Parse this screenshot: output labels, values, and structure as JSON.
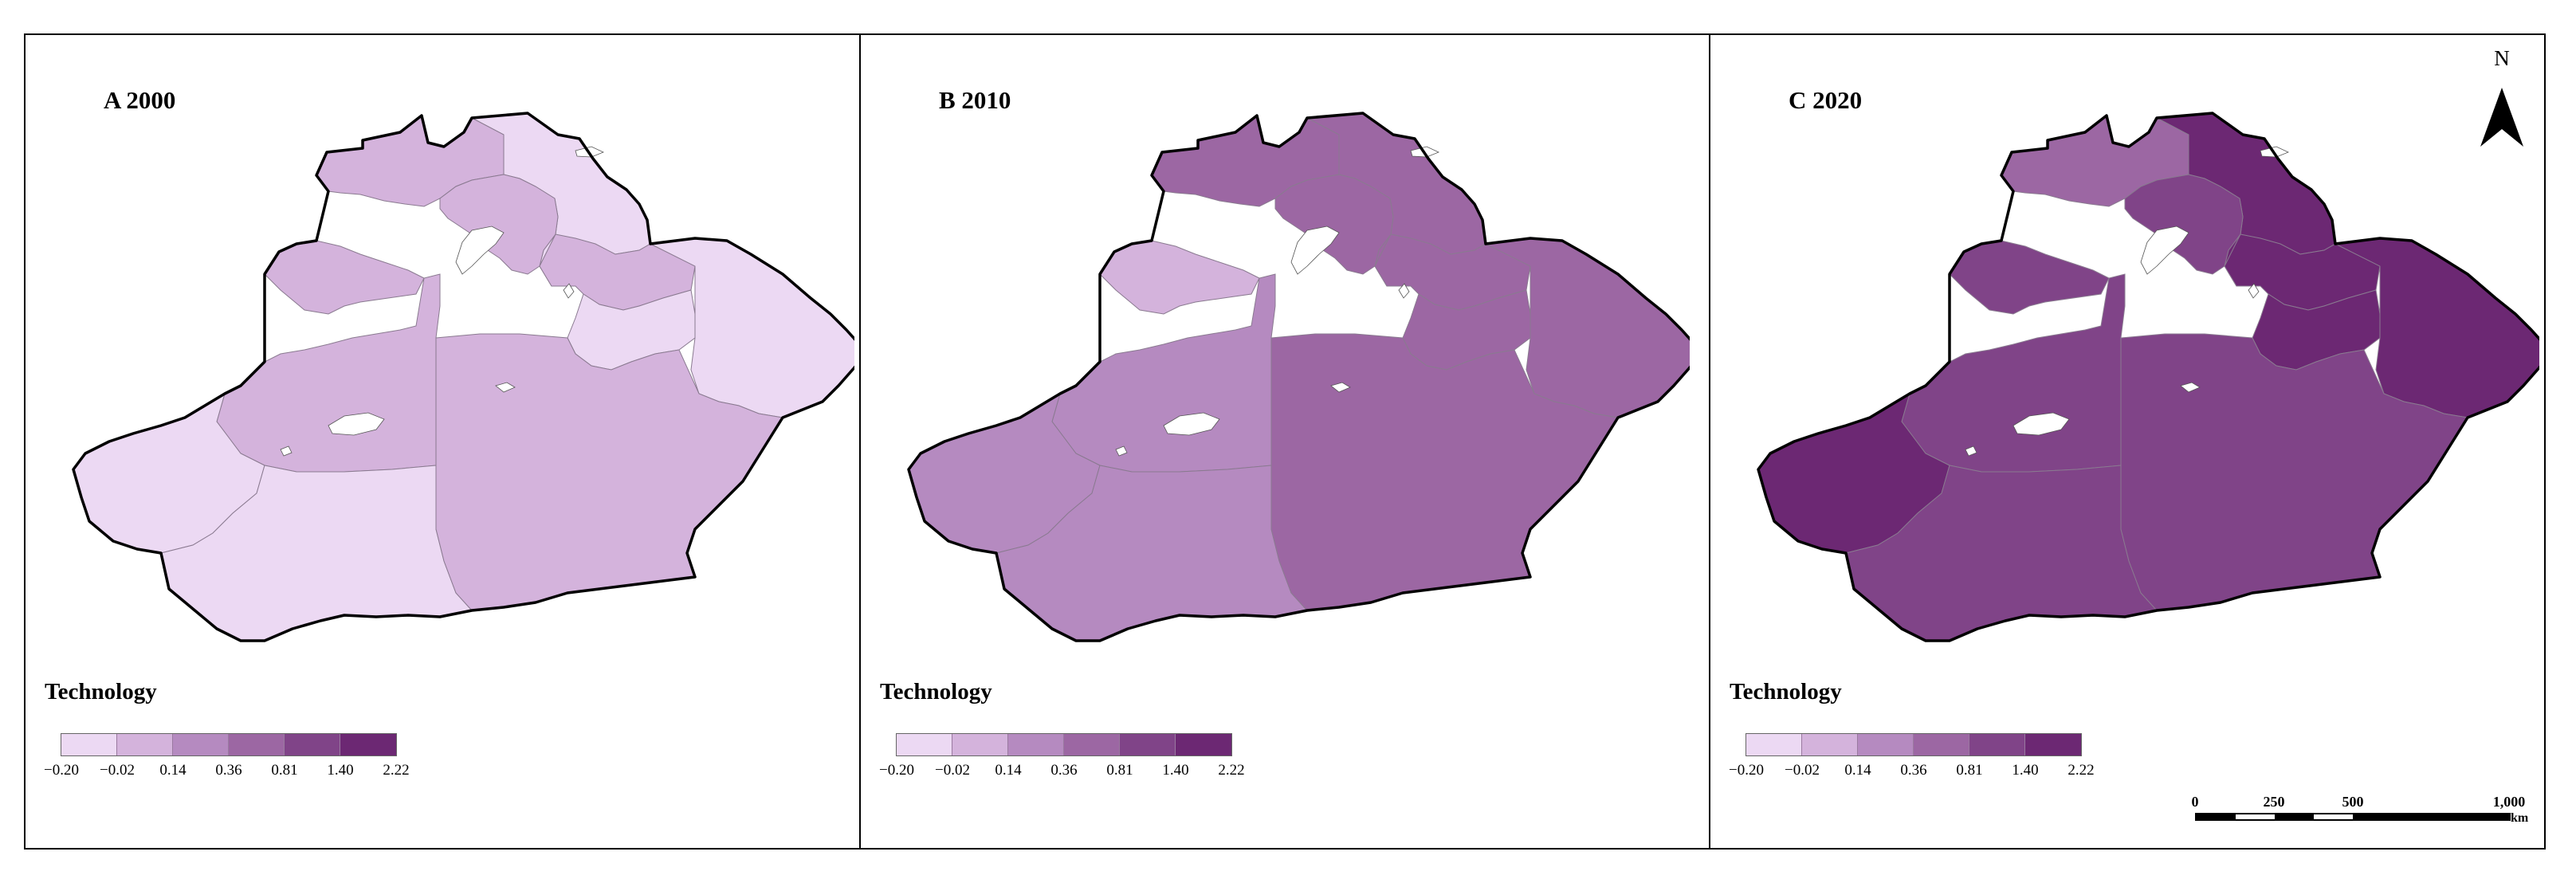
{
  "figure": {
    "panels": [
      {
        "label": "A 2000",
        "regions": {
          "north_ne": "#ecd9f3",
          "north_lake_band": "#d4b3dc",
          "north_center": "#d4b3dc",
          "mid_east": "#d4b3dc",
          "east_lower": "#ecd9f3",
          "far_east": "#ecd9f3",
          "west_strip": "#d4b3dc",
          "central_west": "#d4b3dc",
          "west_tip": "#ecd9f3",
          "south_west": "#ecd9f3",
          "south_east": "#d4b3dc"
        }
      },
      {
        "label": "B 2010",
        "regions": {
          "north_ne": "#9c67a3",
          "north_lake_band": "#9c67a3",
          "north_center": "#9c67a3",
          "mid_east": "#9c67a3",
          "east_lower": "#9c67a3",
          "far_east": "#9c67a3",
          "west_strip": "#d4b3dc",
          "central_west": "#b58ac0",
          "west_tip": "#b58ac0",
          "south_west": "#b58ac0",
          "south_east": "#9c67a3"
        }
      },
      {
        "label": "C 2020",
        "regions": {
          "north_ne": "#6c2873",
          "north_lake_band": "#9c67a3",
          "north_center": "#804488",
          "mid_east": "#6c2873",
          "east_lower": "#6c2873",
          "far_east": "#6c2873",
          "west_strip": "#804488",
          "central_west": "#804488",
          "west_tip": "#6c2873",
          "south_west": "#804488",
          "south_east": "#804488"
        }
      }
    ]
  },
  "legend": {
    "title": "Technology",
    "colors": [
      "#ecd9f3",
      "#d4b3dc",
      "#b58ac0",
      "#9c67a3",
      "#804488",
      "#6c2873"
    ],
    "ticks": [
      "−0.20",
      "−0.02",
      "0.14",
      "0.36",
      "0.81",
      "1.40",
      "2.22"
    ]
  },
  "north_arrow": {
    "label": "N"
  },
  "scale_bar": {
    "ticks": [
      "0",
      "250",
      "500",
      "1,000"
    ],
    "unit": "km"
  }
}
